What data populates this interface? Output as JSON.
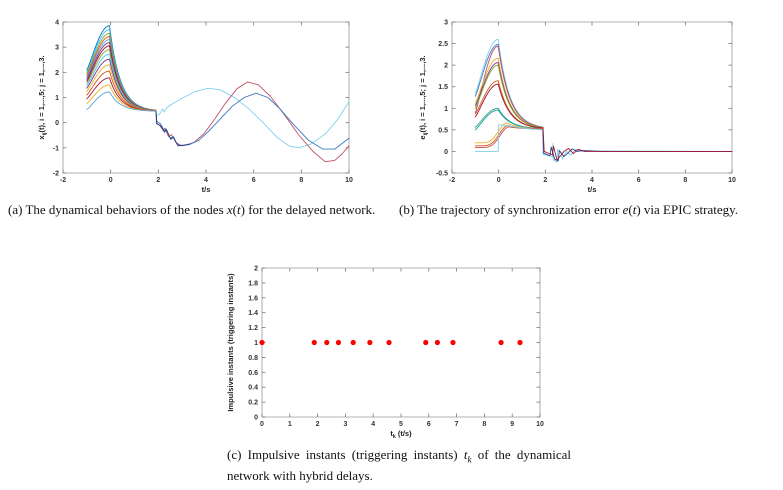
{
  "figure": {
    "background": "#ffffff"
  },
  "captions": {
    "a": [
      {
        "t": "(a)  The dynamical behaviors of the nodes "
      },
      {
        "t": "x",
        "i": true
      },
      {
        "t": "("
      },
      {
        "t": "t",
        "i": true
      },
      {
        "t": ") for the delayed network."
      }
    ],
    "b": [
      {
        "t": "(b)  The trajectory of synchronization error "
      },
      {
        "t": "e",
        "i": true
      },
      {
        "t": "("
      },
      {
        "t": "t",
        "i": true
      },
      {
        "t": ") via EPIC strategy."
      }
    ],
    "c": [
      {
        "t": "(c)  Impulsive instants (triggering instants) "
      },
      {
        "t": "t",
        "i": true
      },
      {
        "t": "k",
        "i": true,
        "sub": true
      },
      {
        "t": " of the dynamical network with hybrid delays."
      }
    ]
  },
  "chart_data": [
    {
      "id": "a",
      "type": "line",
      "xlabel": "t/s",
      "ylabel": {
        "var": "x",
        "sub": "ij",
        "rest": "(t), i = 1,...,5; j = 1,...,3."
      },
      "xlim": [
        -2,
        10
      ],
      "ylim": [
        -2,
        4
      ],
      "xticks": [
        -2,
        0,
        2,
        4,
        6,
        8,
        10
      ],
      "yticks": [
        -2,
        -1,
        0,
        1,
        2,
        3,
        4
      ],
      "grid": false,
      "transient": {
        "t_start": -1,
        "t_peak": -0.05,
        "t_end": 1.9,
        "end_value": 0.45,
        "decay": 2.2,
        "series": [
          {
            "start": 2.1,
            "peak": 3.85,
            "color": "#0072BD"
          },
          {
            "start": 2.02,
            "peak": 3.7,
            "color": "#4DBEEE"
          },
          {
            "start": 1.95,
            "peak": 3.55,
            "color": "#77AC30"
          },
          {
            "start": 1.87,
            "peak": 3.42,
            "color": "#D95319"
          },
          {
            "start": 1.8,
            "peak": 3.3,
            "color": "#5ba3d9"
          },
          {
            "start": 1.73,
            "peak": 3.18,
            "color": "#7E2F8E"
          },
          {
            "start": 1.65,
            "peak": 3.05,
            "color": "#A2142F"
          },
          {
            "start": 1.57,
            "peak": 2.9,
            "color": "#77AC30"
          },
          {
            "start": 1.47,
            "peak": 2.72,
            "color": "#4DBEEE"
          },
          {
            "start": 1.37,
            "peak": 2.52,
            "color": "#7E2F8E"
          },
          {
            "start": 1.25,
            "peak": 2.3,
            "color": "#EDB120"
          },
          {
            "start": 1.1,
            "peak": 2.05,
            "color": "#D95319"
          },
          {
            "start": 0.95,
            "peak": 1.78,
            "color": "#A2142F"
          },
          {
            "start": 0.75,
            "peak": 1.5,
            "color": "#EDB120"
          },
          {
            "start": 0.52,
            "peak": 1.22,
            "color": "#5ba3d9"
          }
        ]
      },
      "series": [
        {
          "name": "node-cyan",
          "color": "#7fd0ee",
          "points": [
            [
              1.9,
              0.45
            ],
            [
              1.93,
              0.28
            ],
            [
              2.05,
              0.33
            ],
            [
              2.18,
              0.55
            ],
            [
              2.24,
              0.42
            ],
            [
              2.38,
              0.62
            ],
            [
              2.6,
              0.75
            ],
            [
              3.0,
              0.97
            ],
            [
              3.5,
              1.22
            ],
            [
              4.1,
              1.37
            ],
            [
              4.6,
              1.3
            ],
            [
              5.2,
              1.0
            ],
            [
              5.8,
              0.55
            ],
            [
              6.4,
              0.0
            ],
            [
              7.0,
              -0.6
            ],
            [
              7.5,
              -0.93
            ],
            [
              7.9,
              -1.0
            ],
            [
              8.4,
              -0.85
            ],
            [
              9.0,
              -0.45
            ],
            [
              9.5,
              0.1
            ],
            [
              10,
              0.83
            ]
          ]
        },
        {
          "name": "node-red",
          "color": "#c44f65",
          "points": [
            [
              1.9,
              0.45
            ],
            [
              1.92,
              -0.02
            ],
            [
              2.05,
              -0.1
            ],
            [
              2.2,
              -0.3
            ],
            [
              2.28,
              -0.22
            ],
            [
              2.42,
              -0.55
            ],
            [
              2.55,
              -0.48
            ],
            [
              2.75,
              -0.8
            ],
            [
              2.95,
              -0.9
            ],
            [
              3.2,
              -0.88
            ],
            [
              3.5,
              -0.78
            ],
            [
              3.9,
              -0.45
            ],
            [
              4.3,
              0.05
            ],
            [
              4.8,
              0.75
            ],
            [
              5.3,
              1.35
            ],
            [
              5.75,
              1.62
            ],
            [
              6.2,
              1.5
            ],
            [
              6.7,
              1.05
            ],
            [
              7.3,
              0.3
            ],
            [
              7.9,
              -0.5
            ],
            [
              8.5,
              -1.15
            ],
            [
              9.0,
              -1.55
            ],
            [
              9.4,
              -1.5
            ],
            [
              9.7,
              -1.25
            ],
            [
              10,
              -0.92
            ]
          ]
        },
        {
          "name": "node-blue",
          "color": "#3a7abf",
          "points": [
            [
              1.9,
              0.45
            ],
            [
              1.93,
              0.05
            ],
            [
              2.1,
              -0.05
            ],
            [
              2.25,
              -0.33
            ],
            [
              2.33,
              -0.25
            ],
            [
              2.5,
              -0.62
            ],
            [
              2.62,
              -0.55
            ],
            [
              2.8,
              -0.88
            ],
            [
              3.0,
              -0.92
            ],
            [
              3.3,
              -0.87
            ],
            [
              3.7,
              -0.7
            ],
            [
              4.1,
              -0.35
            ],
            [
              4.6,
              0.15
            ],
            [
              5.1,
              0.65
            ],
            [
              5.6,
              1.0
            ],
            [
              6.1,
              1.17
            ],
            [
              6.6,
              1.0
            ],
            [
              7.1,
              0.55
            ],
            [
              7.7,
              -0.1
            ],
            [
              8.3,
              -0.7
            ],
            [
              8.9,
              -1.05
            ],
            [
              9.4,
              -1.05
            ],
            [
              10,
              -0.62
            ]
          ]
        },
        {
          "name": "node-navy-zigzag",
          "color": "#27408b",
          "points": [
            [
              1.9,
              0.45
            ],
            [
              1.94,
              -0.05
            ],
            [
              2.1,
              -0.12
            ],
            [
              2.26,
              -0.38
            ],
            [
              2.34,
              -0.28
            ],
            [
              2.52,
              -0.66
            ],
            [
              2.64,
              -0.58
            ],
            [
              2.82,
              -0.92
            ],
            [
              3.05,
              -0.9
            ],
            [
              3.3,
              -0.85
            ]
          ]
        }
      ]
    },
    {
      "id": "b",
      "type": "line",
      "xlabel": "t/s",
      "ylabel": {
        "var": "e",
        "sub": "ij",
        "rest": "(t), i = 1,...,5; j = 1,...,3."
      },
      "xlim": [
        -2,
        10
      ],
      "ylim": [
        -0.5,
        3
      ],
      "xticks": [
        -2,
        0,
        2,
        4,
        6,
        8,
        10
      ],
      "yticks": [
        -0.5,
        0,
        0.5,
        1,
        1.5,
        2,
        2.5,
        3
      ],
      "grid": false,
      "transient": {
        "t_start": -1,
        "t_peak": -0.02,
        "t_end": 1.9,
        "end_value": 0.52,
        "decay": 2.0,
        "series": [
          {
            "start": 1.35,
            "peak": 2.6,
            "color": "#7fd0ee"
          },
          {
            "start": 1.28,
            "peak": 2.48,
            "color": "#3a7abf"
          },
          {
            "start": 0.9,
            "peak": 2.44,
            "color": "#c44f65"
          },
          {
            "start": 1.12,
            "peak": 2.16,
            "color": "#EDB120"
          },
          {
            "start": 1.06,
            "peak": 2.06,
            "color": "#7E2F8E"
          },
          {
            "start": 1.0,
            "peak": 2.0,
            "color": "#77AC30"
          },
          {
            "start": 0.87,
            "peak": 1.64,
            "color": "#D95319"
          },
          {
            "start": 0.8,
            "peak": 1.56,
            "color": "#A2142F"
          },
          {
            "start": 0.56,
            "peak": 1.0,
            "color": "#2aa198"
          },
          {
            "start": 0.5,
            "peak": 0.96,
            "color": "#1f9e89"
          },
          {
            "start": 0.2,
            "peak": 0.66,
            "t_peak": 0.35,
            "rise_pow": 6,
            "color": "#EDB120"
          },
          {
            "start": 0.13,
            "peak": 0.6,
            "t_peak": 0.4,
            "rise_pow": 6,
            "color": "#D95319"
          },
          {
            "start": 0.09,
            "peak": 0.57,
            "t_peak": 0.45,
            "rise_pow": 6,
            "color": "#c0504d"
          }
        ]
      },
      "series": [
        {
          "name": "error-flat-cyan",
          "color": "#7fd0ee",
          "points": [
            [
              -1,
              0
            ],
            [
              -0.02,
              0
            ],
            [
              0,
              0.62
            ],
            [
              0.3,
              0.6
            ],
            [
              0.8,
              0.56
            ],
            [
              1.4,
              0.52
            ],
            [
              1.88,
              0.5
            ],
            [
              1.9,
              -0.07
            ],
            [
              2.3,
              -0.12
            ],
            [
              2.32,
              0.18
            ],
            [
              2.34,
              -0.2
            ],
            [
              2.5,
              -0.25
            ],
            [
              2.52,
              0.05
            ],
            [
              2.7,
              -0.05
            ],
            [
              2.72,
              -0.18
            ],
            [
              2.9,
              0.0
            ],
            [
              3.1,
              -0.08
            ],
            [
              3.3,
              0.05
            ],
            [
              3.6,
              0.0
            ],
            [
              4.2,
              0.01
            ],
            [
              10,
              0
            ]
          ]
        },
        {
          "name": "error-zigzag-navy",
          "color": "#27408b",
          "points": [
            [
              1.9,
              0.52
            ],
            [
              1.93,
              -0.04
            ],
            [
              2.2,
              -0.1
            ],
            [
              2.25,
              0.1
            ],
            [
              2.4,
              -0.18
            ],
            [
              2.55,
              -0.22
            ],
            [
              2.6,
              0.02
            ],
            [
              2.8,
              -0.12
            ],
            [
              3.0,
              -0.02
            ],
            [
              3.15,
              0.06
            ],
            [
              3.35,
              0.0
            ],
            [
              3.6,
              0.02
            ],
            [
              4.5,
              0.0
            ],
            [
              10,
              0
            ]
          ]
        },
        {
          "name": "error-zigzag-maroon",
          "color": "#A2142F",
          "points": [
            [
              1.9,
              0.55
            ],
            [
              1.95,
              0.0
            ],
            [
              2.3,
              -0.08
            ],
            [
              2.35,
              0.12
            ],
            [
              2.5,
              -0.2
            ],
            [
              2.65,
              -0.1
            ],
            [
              2.8,
              0.0
            ],
            [
              3.0,
              0.07
            ],
            [
              3.2,
              -0.05
            ],
            [
              3.4,
              0.05
            ],
            [
              3.7,
              0.0
            ],
            [
              10,
              0
            ]
          ]
        }
      ]
    },
    {
      "id": "c",
      "type": "scatter",
      "xlabel": {
        "var": "t",
        "sub": "k",
        "rest": " (t/s)"
      },
      "ylabel": "Impulsive instants (triggering instants)",
      "xlim": [
        0,
        10
      ],
      "ylim": [
        0,
        2
      ],
      "xticks": [
        0,
        1,
        2,
        3,
        4,
        5,
        6,
        7,
        8,
        9,
        10
      ],
      "yticks": [
        0,
        0.2,
        0.4,
        0.6,
        0.8,
        1,
        1.2,
        1.4,
        1.6,
        1.8,
        2
      ],
      "grid": false,
      "marker_color": "#ff0000",
      "points_x": [
        0,
        1.88,
        2.33,
        2.75,
        3.28,
        3.88,
        4.57,
        5.89,
        6.31,
        6.87,
        8.6,
        9.28
      ],
      "points_y": 1
    }
  ]
}
